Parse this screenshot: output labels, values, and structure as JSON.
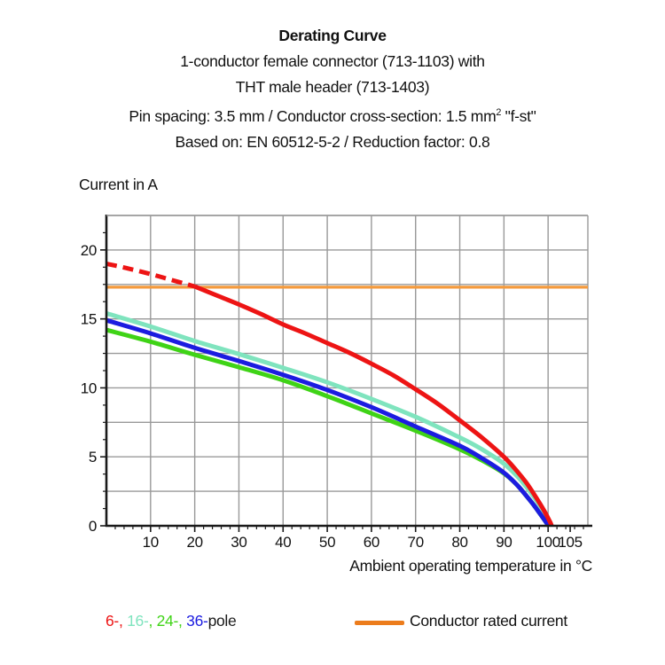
{
  "figure": {
    "header": {
      "title": "Derating Curve",
      "line2": "1-conductor female connector (713-1103) with",
      "line3": "THT male header (713-1403)",
      "line4_prefix": "Pin spacing: 3.5 mm / Conductor cross-section: 1.5 mm",
      "line4_sup": "2",
      "line4_suffix": " \"f-st\"",
      "line5": "Based on: EN 60512-5-2 / Reduction factor: 0.8"
    },
    "ylabel_text": "Current in A",
    "xlabel_text": "Ambient operating temperature in °C",
    "legend": {
      "pole_segments": [
        {
          "text": "6-,",
          "color": "#ED1414"
        },
        {
          "text": " 16-",
          "color": "#7FE4BE"
        },
        {
          "text": ",",
          "color": "#3FD316"
        },
        {
          "text": " 24-,",
          "color": "#3FD316"
        },
        {
          "text": " 36-",
          "color": "#1C1CE0"
        },
        {
          "text": "pole",
          "color": "#1A1A1A"
        }
      ],
      "rated_swatch_color": "#EC7C1C",
      "rated_label": "Conductor rated current"
    }
  },
  "chart_data": {
    "type": "line",
    "title": "Derating Curve",
    "xlabel": "Ambient operating temperature in °C",
    "ylabel": "Current in A",
    "xlim": [
      0,
      109
    ],
    "ylim": [
      0,
      22.5
    ],
    "x_tick_labels": [
      10,
      20,
      30,
      40,
      50,
      60,
      70,
      80,
      90,
      100,
      105
    ],
    "y_tick_labels": [
      0,
      5,
      10,
      15,
      20
    ],
    "x_grid_step": 10,
    "x_grid_max": 100,
    "x_minor_step": 2,
    "y_grid_step": 2.5,
    "y_minor_step": 1.25,
    "grid": true,
    "colors": {
      "grid": "#999999",
      "axis": "#1a1a1a",
      "red": "#ED1414",
      "cyan": "#7FE4BE",
      "green": "#3FD316",
      "blue": "#1C1CE0",
      "orange_line": "#F49A3C"
    },
    "rated_current_A": 17.3,
    "series": [
      {
        "name": "Conductor rated current",
        "color": "#F49A3C",
        "style": "solid",
        "width": 3.2,
        "points": [
          [
            0,
            17.3
          ],
          [
            109,
            17.3
          ]
        ]
      },
      {
        "name": "24-pole",
        "color": "#3FD316",
        "style": "solid",
        "width": 5,
        "points": [
          [
            0,
            14.2
          ],
          [
            10,
            13.35
          ],
          [
            20,
            12.4
          ],
          [
            30,
            11.5
          ],
          [
            40,
            10.55
          ],
          [
            50,
            9.4
          ],
          [
            60,
            8.15
          ],
          [
            70,
            6.9
          ],
          [
            80,
            5.55
          ],
          [
            85,
            4.75
          ],
          [
            90,
            3.8
          ],
          [
            93,
            2.95
          ],
          [
            95,
            2.2
          ],
          [
            97,
            1.4
          ],
          [
            99,
            0.5
          ],
          [
            100.1,
            0
          ]
        ]
      },
      {
        "name": "16-pole",
        "color": "#7FE4BE",
        "style": "solid",
        "width": 5,
        "points": [
          [
            0,
            15.4
          ],
          [
            10,
            14.45
          ],
          [
            20,
            13.4
          ],
          [
            30,
            12.45
          ],
          [
            40,
            11.45
          ],
          [
            50,
            10.4
          ],
          [
            60,
            9.2
          ],
          [
            70,
            7.9
          ],
          [
            80,
            6.4
          ],
          [
            85,
            5.55
          ],
          [
            90,
            4.5
          ],
          [
            93,
            3.6
          ],
          [
            95,
            2.85
          ],
          [
            97,
            2.0
          ],
          [
            99,
            1.0
          ],
          [
            100.4,
            0
          ]
        ]
      },
      {
        "name": "36-pole",
        "color": "#1C1CE0",
        "style": "solid",
        "width": 5,
        "points": [
          [
            0,
            14.9
          ],
          [
            10,
            13.95
          ],
          [
            20,
            12.9
          ],
          [
            30,
            11.95
          ],
          [
            40,
            10.95
          ],
          [
            50,
            9.85
          ],
          [
            60,
            8.6
          ],
          [
            70,
            7.2
          ],
          [
            80,
            5.8
          ],
          [
            85,
            4.9
          ],
          [
            90,
            3.85
          ],
          [
            93,
            2.95
          ],
          [
            95,
            2.2
          ],
          [
            97,
            1.4
          ],
          [
            99,
            0.5
          ],
          [
            100.1,
            0
          ]
        ]
      },
      {
        "name": "6-pole",
        "color": "#ED1414",
        "style": "solid",
        "width": 5,
        "points": [
          [
            20,
            17.35
          ],
          [
            25,
            16.7
          ],
          [
            30,
            16.05
          ],
          [
            35,
            15.35
          ],
          [
            40,
            14.6
          ],
          [
            45,
            13.95
          ],
          [
            50,
            13.25
          ],
          [
            55,
            12.55
          ],
          [
            60,
            11.75
          ],
          [
            65,
            10.9
          ],
          [
            70,
            9.9
          ],
          [
            75,
            8.85
          ],
          [
            80,
            7.65
          ],
          [
            85,
            6.4
          ],
          [
            90,
            5.0
          ],
          [
            93,
            3.95
          ],
          [
            95,
            3.15
          ],
          [
            97,
            2.2
          ],
          [
            99,
            1.15
          ],
          [
            100.4,
            0.3
          ],
          [
            100.8,
            0
          ]
        ]
      },
      {
        "name": "6-pole-dashed",
        "color": "#ED1414",
        "style": "dashed",
        "width": 5,
        "points": [
          [
            0,
            19.0
          ],
          [
            5,
            18.65
          ],
          [
            10,
            18.25
          ],
          [
            15,
            17.8
          ],
          [
            20,
            17.35
          ]
        ]
      }
    ]
  }
}
